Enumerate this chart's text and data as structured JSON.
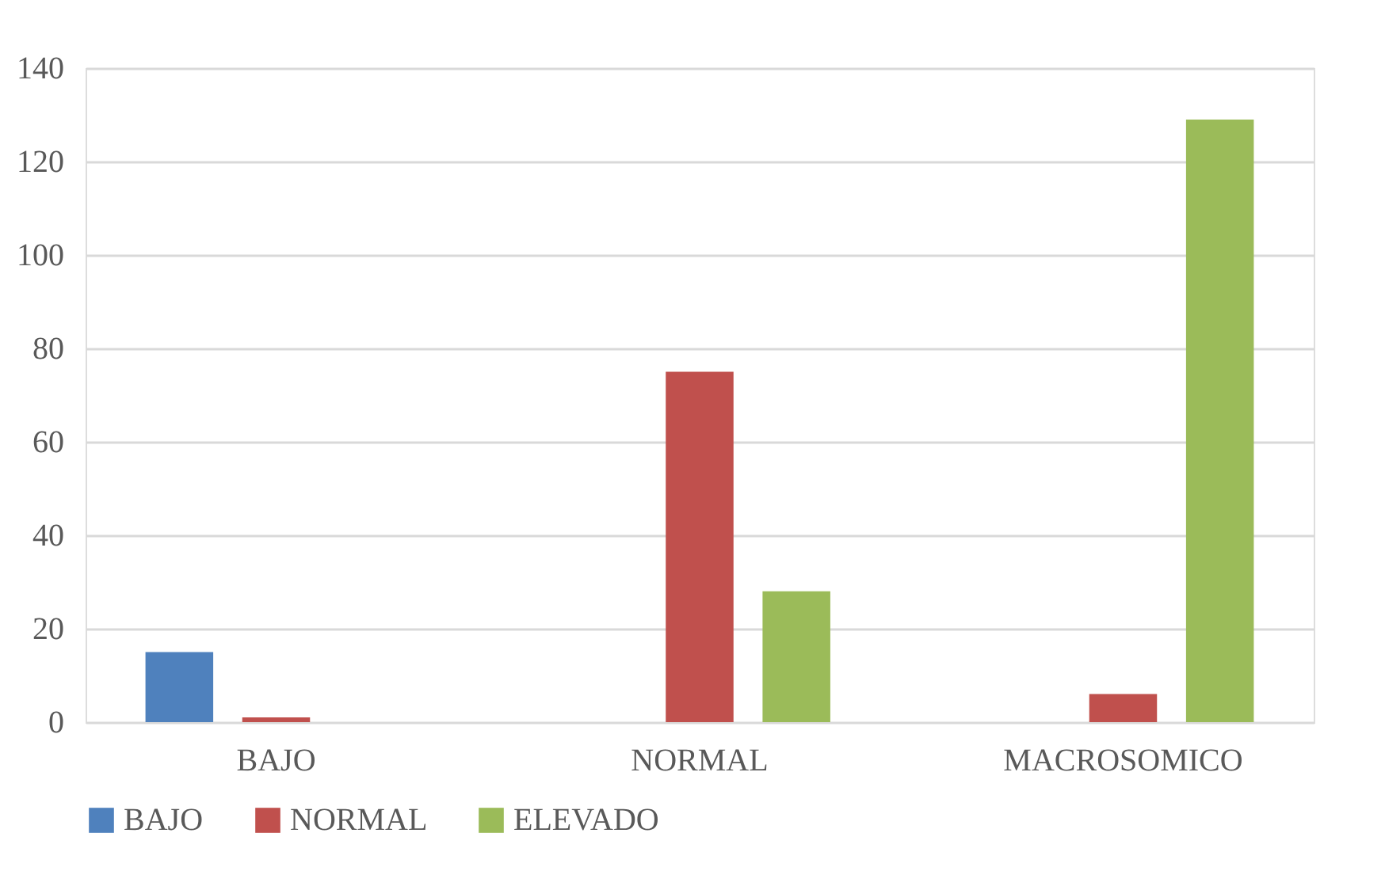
{
  "chart_data": {
    "type": "bar",
    "categories": [
      "BAJO",
      "NORMAL",
      "MACROSOMICO"
    ],
    "series": [
      {
        "name": "BAJO",
        "color": "#4f81bd",
        "values": [
          15,
          0,
          0
        ]
      },
      {
        "name": "NORMAL",
        "color": "#c0504d",
        "values": [
          1,
          75,
          6
        ]
      },
      {
        "name": "ELEVADO",
        "color": "#9bbb59",
        "values": [
          0,
          28,
          129
        ]
      }
    ],
    "ylim": [
      0,
      140
    ],
    "yticks": [
      0,
      20,
      40,
      60,
      80,
      100,
      120,
      140
    ],
    "grid": "y",
    "legend": "bottom"
  }
}
